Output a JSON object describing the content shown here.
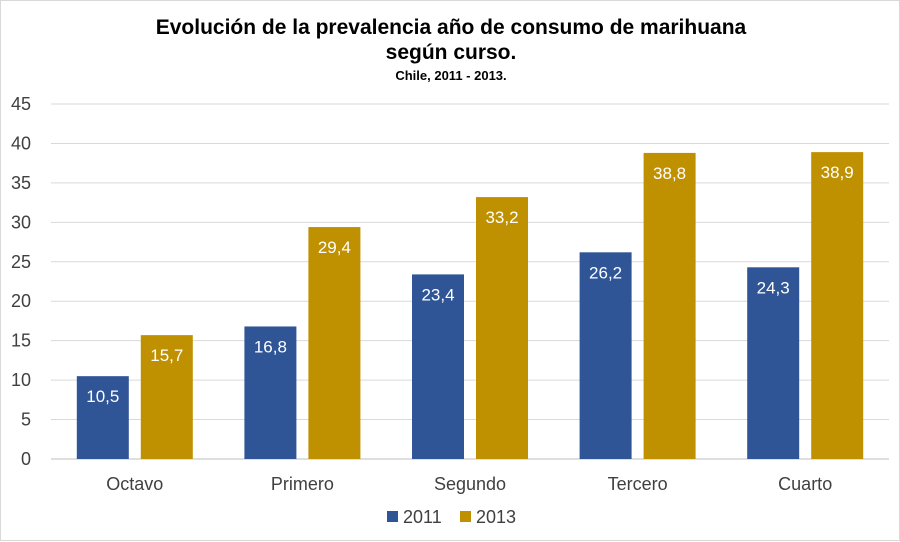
{
  "chart_data": {
    "type": "bar",
    "title_line1": "Evolución de la prevalencia año de consumo de marihuana",
    "title_line2": "según curso.",
    "subtitle": "Chile, 2011 - 2013.",
    "categories": [
      "Octavo",
      "Primero",
      "Segundo",
      "Tercero",
      "Cuarto"
    ],
    "series": [
      {
        "name": "2011",
        "color": "#2F5597",
        "values": [
          10.5,
          16.8,
          23.4,
          26.2,
          24.3
        ],
        "labels": [
          "10,5",
          "16,8",
          "23,4",
          "26,2",
          "24,3"
        ]
      },
      {
        "name": "2013",
        "color": "#BF9000",
        "values": [
          15.7,
          29.4,
          33.2,
          38.8,
          38.9
        ],
        "labels": [
          "15,7",
          "29,4",
          "33,2",
          "38,8",
          "38,9"
        ]
      }
    ],
    "ylim": [
      0,
      45
    ],
    "yticks": [
      0,
      5,
      10,
      15,
      20,
      25,
      30,
      35,
      40,
      45
    ],
    "grid": true,
    "legend": "bottom-center",
    "xlabel": "",
    "ylabel": ""
  }
}
